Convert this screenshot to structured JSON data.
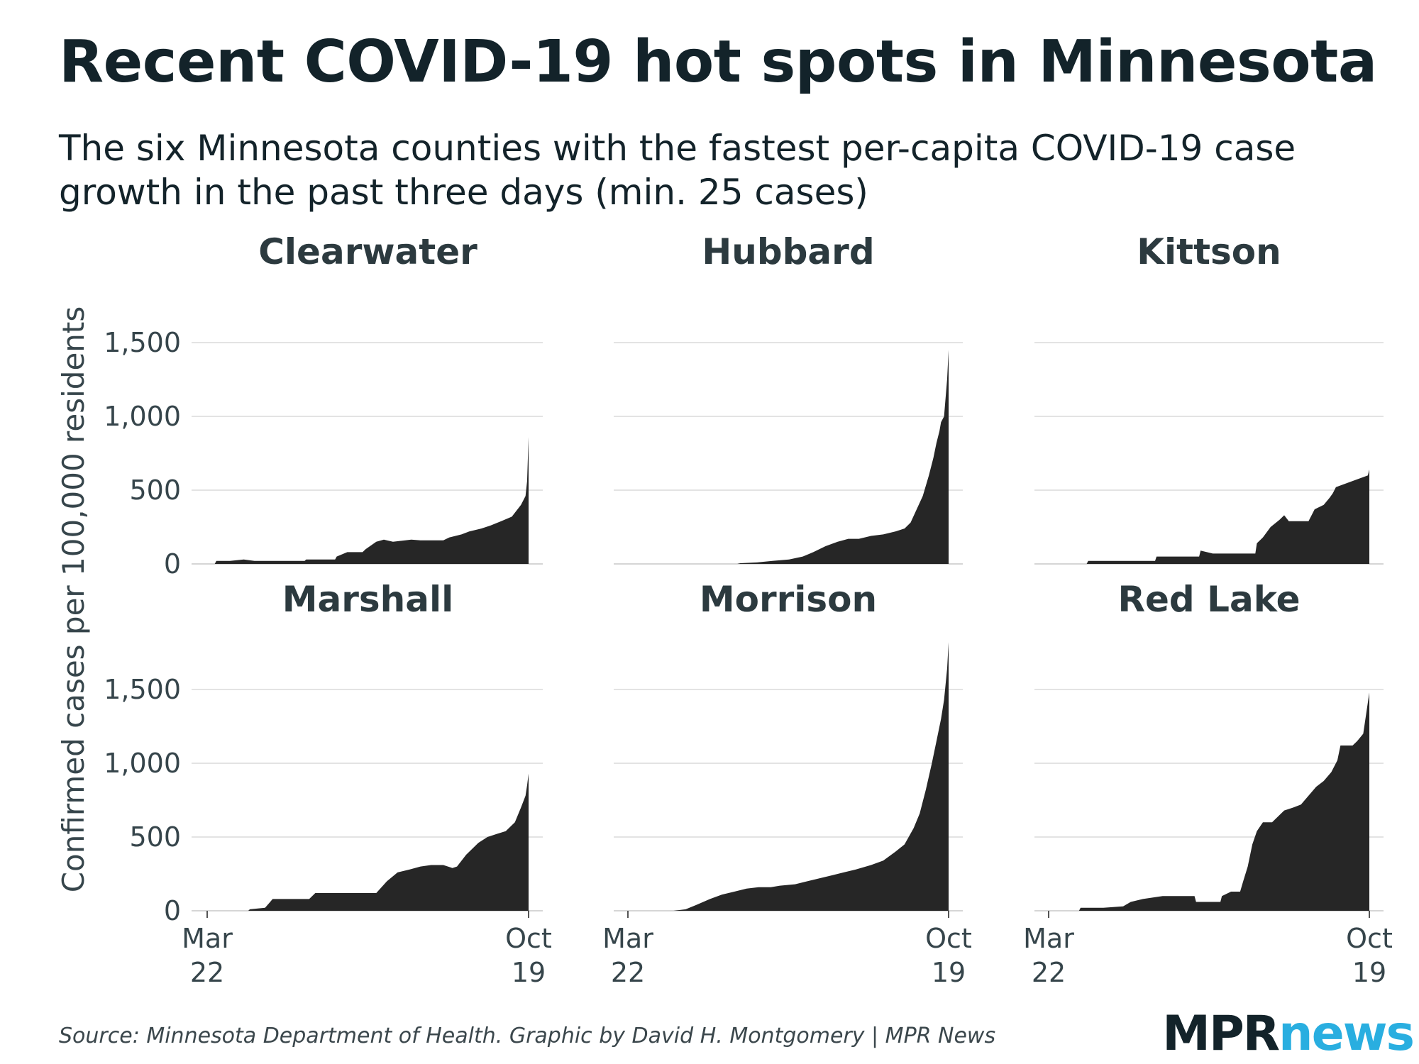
{
  "title": "Recent COVID-19 hot spots in Minnesota",
  "subtitle": "The six Minnesota counties with the fastest per-capita COVID-19 case growth in the past three days (min. 25 cases)",
  "source": "Source: Minnesota Department of Health. Graphic by David H. Montgomery | MPR News",
  "logo": {
    "part1": "MPR",
    "part2": "news",
    "color1": "#13232a",
    "color2": "#29aee0"
  },
  "chart_data": {
    "type": "area",
    "ylabel": "Confirmed cases per 100,000 residents",
    "ylim": [
      0,
      1700
    ],
    "yticks": [
      {
        "value": 0,
        "label": "0"
      },
      {
        "value": 500,
        "label": "500"
      },
      {
        "value": 1000,
        "label": "1,000"
      },
      {
        "value": 1500,
        "label": "1,500"
      }
    ],
    "xlim": [
      0,
      211
    ],
    "xticks": [
      {
        "value": 0,
        "line1": "Mar",
        "line2": "22"
      },
      {
        "value": 211,
        "line1": "Oct",
        "line2": "19"
      }
    ],
    "x_unit": "days since Mar 22",
    "fill_color": "#262626",
    "series": [
      {
        "name": "Clearwater",
        "points": [
          [
            0,
            0
          ],
          [
            5,
            0
          ],
          [
            6,
            20
          ],
          [
            15,
            20
          ],
          [
            24,
            30
          ],
          [
            31,
            20
          ],
          [
            64,
            20
          ],
          [
            65,
            30
          ],
          [
            84,
            30
          ],
          [
            85,
            50
          ],
          [
            92,
            80
          ],
          [
            102,
            80
          ],
          [
            104,
            100
          ],
          [
            111,
            150
          ],
          [
            116,
            165
          ],
          [
            122,
            150
          ],
          [
            134,
            165
          ],
          [
            140,
            160
          ],
          [
            155,
            160
          ],
          [
            159,
            180
          ],
          [
            167,
            200
          ],
          [
            172,
            220
          ],
          [
            180,
            240
          ],
          [
            186,
            260
          ],
          [
            193,
            290
          ],
          [
            200,
            320
          ],
          [
            206,
            400
          ],
          [
            209,
            460
          ],
          [
            210,
            560
          ],
          [
            211,
            860
          ]
        ]
      },
      {
        "name": "Hubbard",
        "points": [
          [
            0,
            0
          ],
          [
            72,
            0
          ],
          [
            74,
            5
          ],
          [
            85,
            10
          ],
          [
            95,
            20
          ],
          [
            106,
            30
          ],
          [
            115,
            50
          ],
          [
            122,
            80
          ],
          [
            130,
            120
          ],
          [
            138,
            150
          ],
          [
            145,
            170
          ],
          [
            152,
            170
          ],
          [
            160,
            190
          ],
          [
            168,
            200
          ],
          [
            176,
            220
          ],
          [
            182,
            240
          ],
          [
            186,
            280
          ],
          [
            190,
            370
          ],
          [
            194,
            460
          ],
          [
            198,
            600
          ],
          [
            201,
            720
          ],
          [
            203,
            820
          ],
          [
            205,
            900
          ],
          [
            206,
            960
          ],
          [
            208,
            1000
          ],
          [
            210,
            1250
          ],
          [
            211,
            1450
          ]
        ]
      },
      {
        "name": "Kittson",
        "points": [
          [
            0,
            0
          ],
          [
            25,
            0
          ],
          [
            26,
            20
          ],
          [
            70,
            20
          ],
          [
            71,
            50
          ],
          [
            99,
            50
          ],
          [
            100,
            90
          ],
          [
            108,
            70
          ],
          [
            136,
            70
          ],
          [
            137,
            140
          ],
          [
            141,
            180
          ],
          [
            146,
            250
          ],
          [
            152,
            300
          ],
          [
            155,
            330
          ],
          [
            158,
            290
          ],
          [
            171,
            290
          ],
          [
            175,
            370
          ],
          [
            181,
            400
          ],
          [
            185,
            450
          ],
          [
            187,
            480
          ],
          [
            189,
            520
          ],
          [
            210,
            600
          ],
          [
            211,
            640
          ]
        ]
      },
      {
        "name": "Marshall",
        "points": [
          [
            0,
            0
          ],
          [
            27,
            0
          ],
          [
            28,
            10
          ],
          [
            38,
            20
          ],
          [
            43,
            80
          ],
          [
            67,
            80
          ],
          [
            71,
            120
          ],
          [
            111,
            120
          ],
          [
            118,
            200
          ],
          [
            125,
            260
          ],
          [
            133,
            280
          ],
          [
            140,
            300
          ],
          [
            147,
            310
          ],
          [
            155,
            310
          ],
          [
            161,
            290
          ],
          [
            164,
            300
          ],
          [
            170,
            380
          ],
          [
            178,
            460
          ],
          [
            184,
            500
          ],
          [
            190,
            520
          ],
          [
            196,
            540
          ],
          [
            202,
            600
          ],
          [
            206,
            700
          ],
          [
            209,
            780
          ],
          [
            210,
            850
          ],
          [
            211,
            930
          ]
        ]
      },
      {
        "name": "Morrison",
        "points": [
          [
            0,
            0
          ],
          [
            30,
            0
          ],
          [
            38,
            10
          ],
          [
            45,
            40
          ],
          [
            54,
            80
          ],
          [
            62,
            110
          ],
          [
            70,
            130
          ],
          [
            78,
            150
          ],
          [
            86,
            160
          ],
          [
            94,
            160
          ],
          [
            100,
            170
          ],
          [
            110,
            180
          ],
          [
            118,
            200
          ],
          [
            126,
            220
          ],
          [
            134,
            240
          ],
          [
            142,
            260
          ],
          [
            150,
            280
          ],
          [
            160,
            310
          ],
          [
            168,
            340
          ],
          [
            176,
            400
          ],
          [
            182,
            450
          ],
          [
            188,
            560
          ],
          [
            192,
            660
          ],
          [
            196,
            820
          ],
          [
            200,
            1000
          ],
          [
            203,
            1150
          ],
          [
            206,
            1300
          ],
          [
            208,
            1430
          ],
          [
            210,
            1640
          ],
          [
            211,
            1820
          ]
        ]
      },
      {
        "name": "Red Lake",
        "points": [
          [
            0,
            0
          ],
          [
            20,
            0
          ],
          [
            21,
            20
          ],
          [
            36,
            20
          ],
          [
            49,
            30
          ],
          [
            54,
            60
          ],
          [
            62,
            80
          ],
          [
            75,
            100
          ],
          [
            96,
            100
          ],
          [
            97,
            60
          ],
          [
            103,
            60
          ],
          [
            113,
            60
          ],
          [
            114,
            100
          ],
          [
            120,
            130
          ],
          [
            126,
            130
          ],
          [
            128,
            200
          ],
          [
            131,
            300
          ],
          [
            134,
            450
          ],
          [
            137,
            540
          ],
          [
            141,
            600
          ],
          [
            147,
            600
          ],
          [
            151,
            640
          ],
          [
            155,
            680
          ],
          [
            161,
            700
          ],
          [
            166,
            720
          ],
          [
            171,
            780
          ],
          [
            176,
            840
          ],
          [
            181,
            880
          ],
          [
            186,
            940
          ],
          [
            190,
            1020
          ],
          [
            192,
            1120
          ],
          [
            200,
            1120
          ],
          [
            203,
            1150
          ],
          [
            207,
            1200
          ],
          [
            209,
            1340
          ],
          [
            211,
            1480
          ]
        ]
      }
    ]
  }
}
